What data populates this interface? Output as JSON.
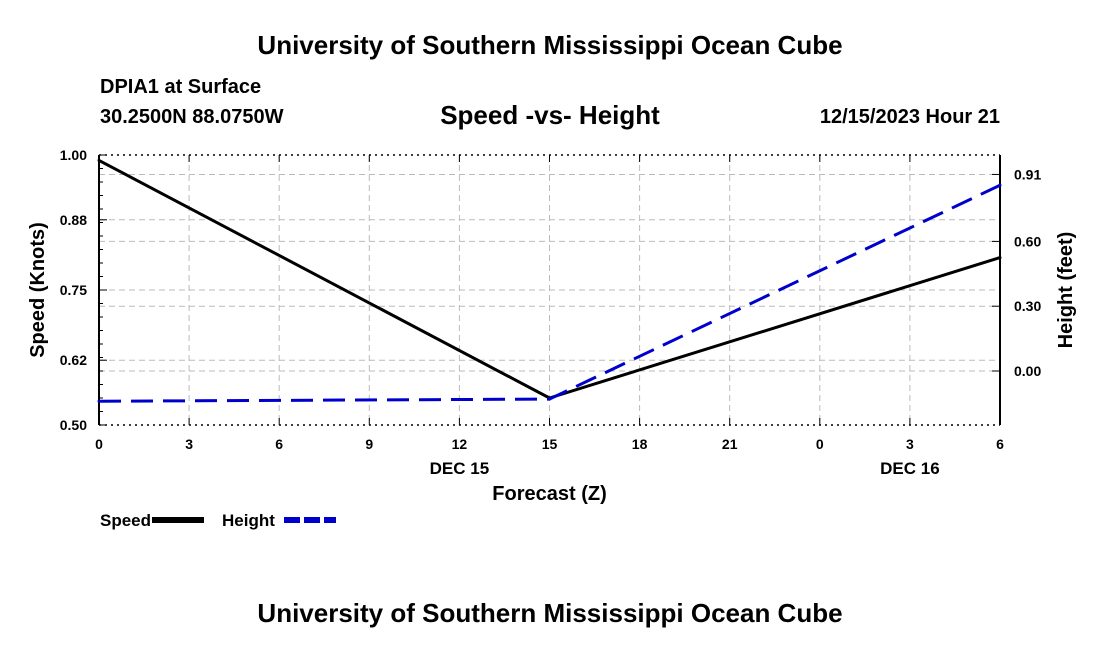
{
  "header": {
    "title": "University of Southern Mississippi Ocean Cube",
    "station": "DPIA1 at Surface",
    "coords": "30.2500N  88.0750W",
    "date": "12/15/2023 Hour 21"
  },
  "footer": {
    "title": "University of Southern Mississippi Ocean Cube"
  },
  "chart_data": {
    "type": "line",
    "title": "Speed -vs- Height",
    "xlabel": "Forecast (Z)",
    "ylabel_left": "Speed (Knots)",
    "ylabel_right": "Height (feet)",
    "x_hours": [
      0,
      3,
      6,
      9,
      12,
      15,
      18,
      21,
      24,
      27,
      30
    ],
    "x_tick_labels": [
      "0",
      "3",
      "6",
      "9",
      "12",
      "15",
      "18",
      "21",
      "0",
      "3",
      "6"
    ],
    "date_labels": [
      {
        "at_hour": 12,
        "label": "DEC 15"
      },
      {
        "at_hour": 27,
        "label": "DEC 16"
      }
    ],
    "xlim": [
      0,
      30
    ],
    "ylim_left": [
      0.5,
      1.0
    ],
    "y_left_ticks": [
      "0.50",
      "0.62",
      "0.75",
      "0.88",
      "1.00"
    ],
    "ylim_right": [
      -0.25,
      1.0
    ],
    "y_right_ticks": [
      "0.00",
      "0.30",
      "0.60",
      "0.91"
    ],
    "grid": true,
    "series": [
      {
        "name": "Speed",
        "axis": "left",
        "color": "#000000",
        "style": "solid",
        "x": [
          0,
          15,
          30
        ],
        "values": [
          0.99,
          0.55,
          0.81
        ]
      },
      {
        "name": "Height",
        "axis": "right",
        "color": "#0000cc",
        "style": "dashed",
        "x": [
          0,
          15,
          30
        ],
        "values": [
          -0.14,
          -0.13,
          0.86
        ]
      }
    ],
    "legend": [
      {
        "label": "Speed",
        "color": "#000000",
        "style": "solid"
      },
      {
        "label": "Height",
        "color": "#0000cc",
        "style": "dashed"
      }
    ]
  }
}
